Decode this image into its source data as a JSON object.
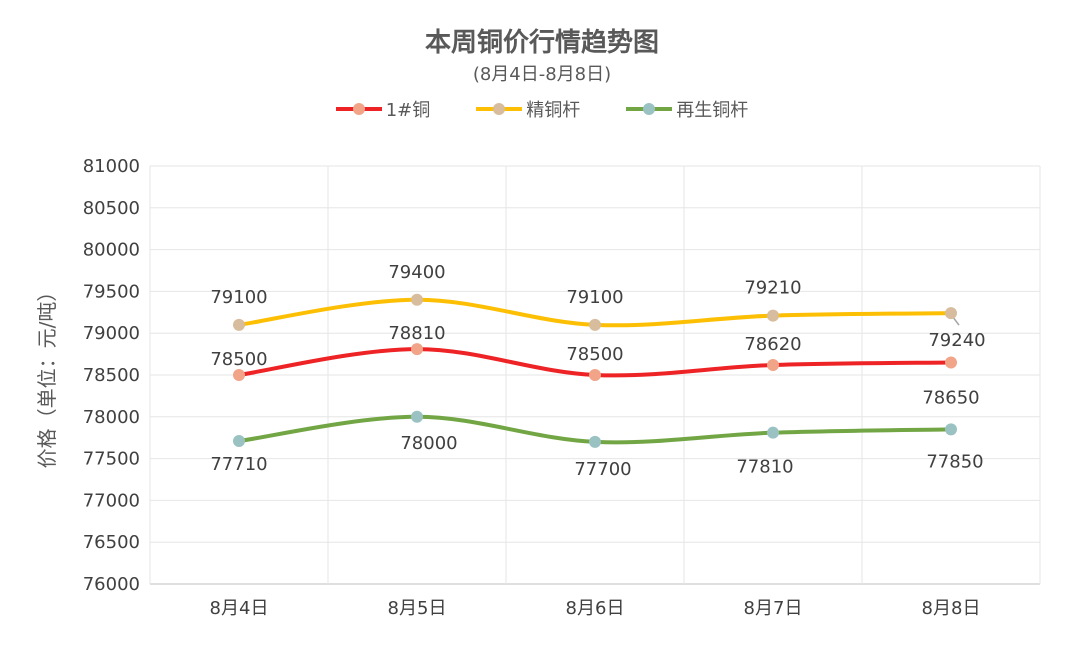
{
  "chart_data": {
    "type": "line",
    "title": "本周铜价行情趋势图",
    "subtitle": "(8月4日-8月8日)",
    "ylabel": "价格（单位：元/吨）",
    "xlabel": "",
    "categories": [
      "8月4日",
      "8月5日",
      "8月6日",
      "8月7日",
      "8月8日"
    ],
    "ylim": [
      76000,
      81000
    ],
    "ytick_step": 500,
    "grid": true,
    "legend_position": "top",
    "series": [
      {
        "name": "1#铜",
        "values": [
          78500,
          78810,
          78500,
          78620,
          78650
        ],
        "color": "#ee2326",
        "marker_color": "#f1a487"
      },
      {
        "name": "精铜杆",
        "values": [
          79100,
          79400,
          79100,
          79210,
          79240
        ],
        "color": "#fcbf04",
        "marker_color": "#d7bd9d"
      },
      {
        "name": "再生铜杆",
        "values": [
          77710,
          78000,
          77700,
          77810,
          77850
        ],
        "color": "#72a645",
        "marker_color": "#9ac2c2"
      }
    ]
  }
}
